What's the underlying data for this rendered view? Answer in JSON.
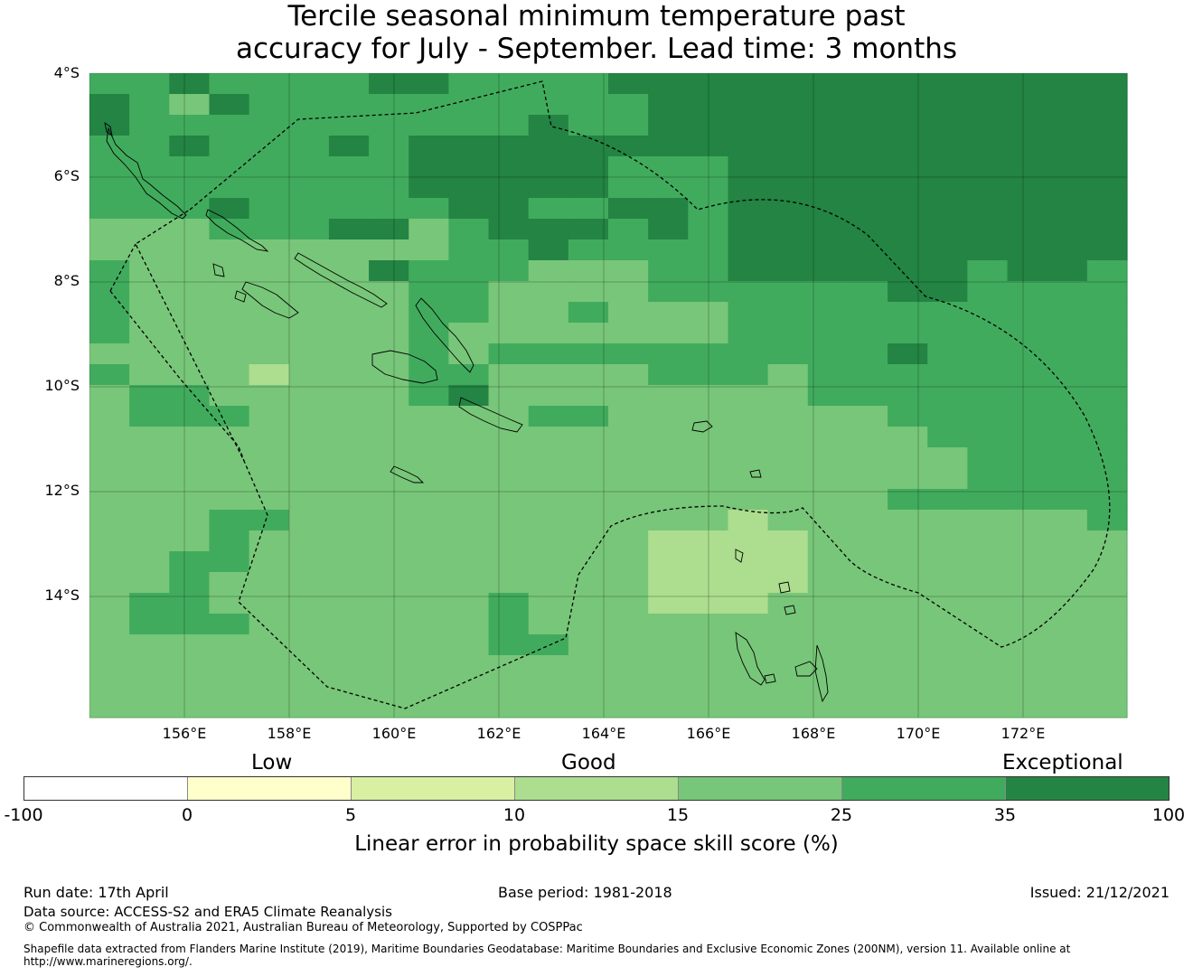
{
  "title": {
    "line1": "Tercile seasonal minimum temperature past",
    "line2": "accuracy for July - September. Lead time: 3 months"
  },
  "map": {
    "lat_labels": [
      "4°S",
      "6°S",
      "8°S",
      "10°S",
      "12°S",
      "14°S"
    ],
    "lon_labels": [
      "156°E",
      "158°E",
      "160°E",
      "162°E",
      "164°E",
      "166°E",
      "168°E",
      "170°E",
      "172°E"
    ],
    "palette": [
      "#ffffff",
      "#ffffcc",
      "#d9f0a3",
      "#addd8e",
      "#78c679",
      "#41ab5d",
      "#238443"
    ],
    "grid_origin": {
      "lon": 154.2,
      "lat": -4.0
    },
    "cell_size_deg": 0.833,
    "skill_grid": [
      "55655556655556666666666666",
      "65465555555555666666666666",
      "65555555555655666666666666",
      "55655565666666666666666666",
      "55555555666665556666666666",
      "55555555666665556666666666",
      "55565555566556656666666666",
      "44455566456665656666666666",
      "44444444455655556666666666",
      "54444446555444556666665665",
      "54444444554444555555665555",
      "54444444554454445555555555",
      "54444444544444445555555555",
      "44444444545555555555655555",
      "54443444554444555455555555",
      "45544444564444444455555555",
      "45554444444554444444555555",
      "44444444444444444444455555",
      "44444444444444444444445555",
      "44444444444444444444445555",
      "44444444444444444444555555",
      "44455444444444443444444445",
      "44454444444444333344444444",
      "44554444444444333344444444",
      "44544444444444333344444444",
      "45544444445444333444444444",
      "45554444445444444444444444",
      "44444444445544444444444444",
      "44444444444444444444444444",
      "44444444444444444444444444",
      "44444444444444444444444444"
    ]
  },
  "colorbar": {
    "categories": [
      "Low",
      "Good",
      "Exceptional"
    ],
    "ticks": [
      "-100",
      "0",
      "5",
      "10",
      "15",
      "25",
      "35",
      "100"
    ],
    "title": "Linear error in probability space skill score (%)"
  },
  "footer": {
    "run_date": "Run date: 17th April",
    "base_period": "Base period: 1981-2018",
    "issued": "Issued: 21/12/2021",
    "data_source": "Data source: ACCESS-S2 and ERA5 Climate Reanalysis",
    "copyright": "© Commonwealth of Australia 2021, Australian Bureau of Meteorology, Supported by COSPPac",
    "shapefile": "Shapefile data extracted from Flanders Marine Institute (2019), Maritime Boundaries Geodatabase: Maritime Boundaries and Exclusive Economic Zones (200NM), version 11. Available online at http://www.marineregions.org/."
  }
}
